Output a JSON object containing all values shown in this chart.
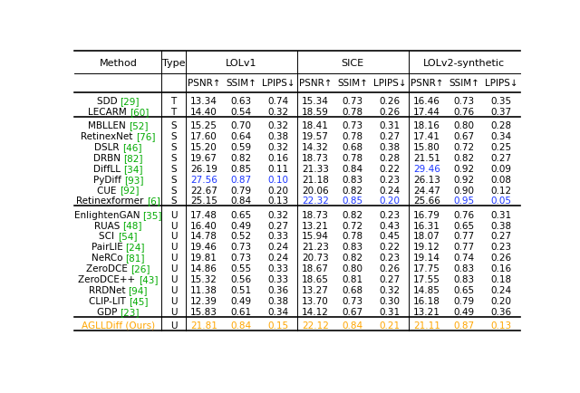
{
  "col_groups": [
    {
      "name": "LOLv1",
      "span": [
        2,
        4
      ]
    },
    {
      "name": "SICE",
      "span": [
        5,
        7
      ]
    },
    {
      "name": "LOLv2-synthetic",
      "span": [
        8,
        10
      ]
    }
  ],
  "metric_labels": [
    "PSNR↑",
    "SSIM↑",
    "LPIPS↓",
    "PSNR↑",
    "SSIM↑",
    "LPIPS↓",
    "PSNR↑",
    "SSIM↑",
    "LPIPS↓"
  ],
  "rows": [
    {
      "method": "SDD",
      "cite": "[29]",
      "type": "T",
      "vals": [
        13.34,
        0.63,
        0.74,
        15.34,
        0.73,
        0.26,
        16.46,
        0.73,
        0.35
      ]
    },
    {
      "method": "LECARM",
      "cite": "[60]",
      "type": "T",
      "vals": [
        14.4,
        0.54,
        0.32,
        18.59,
        0.78,
        0.26,
        17.44,
        0.76,
        0.37
      ]
    },
    {
      "method": "MBLLEN",
      "cite": "[52]",
      "type": "S",
      "vals": [
        15.25,
        0.7,
        0.32,
        18.41,
        0.73,
        0.31,
        18.16,
        0.8,
        0.28
      ]
    },
    {
      "method": "RetinexNet",
      "cite": "[76]",
      "type": "S",
      "vals": [
        17.6,
        0.64,
        0.38,
        19.57,
        0.78,
        0.27,
        17.41,
        0.67,
        0.34
      ]
    },
    {
      "method": "DSLR",
      "cite": "[46]",
      "type": "S",
      "vals": [
        15.2,
        0.59,
        0.32,
        14.32,
        0.68,
        0.38,
        15.8,
        0.72,
        0.25
      ]
    },
    {
      "method": "DRBN",
      "cite": "[82]",
      "type": "S",
      "vals": [
        19.67,
        0.82,
        0.16,
        18.73,
        0.78,
        0.28,
        21.51,
        0.82,
        0.27
      ]
    },
    {
      "method": "DiffLL",
      "cite": "[34]",
      "type": "S",
      "vals": [
        26.19,
        0.85,
        0.11,
        21.33,
        0.84,
        0.22,
        29.46,
        0.92,
        0.09
      ]
    },
    {
      "method": "PyDiff",
      "cite": "[93]",
      "type": "S",
      "vals": [
        27.56,
        0.87,
        0.1,
        21.18,
        0.83,
        0.23,
        26.13,
        0.92,
        0.08
      ]
    },
    {
      "method": "CUE",
      "cite": "[92]",
      "type": "S",
      "vals": [
        22.67,
        0.79,
        0.2,
        20.06,
        0.82,
        0.24,
        24.47,
        0.9,
        0.12
      ]
    },
    {
      "method": "Retinexformer",
      "cite": "[6]",
      "type": "S",
      "vals": [
        25.15,
        0.84,
        0.13,
        22.32,
        0.85,
        0.2,
        25.66,
        0.95,
        0.05
      ]
    },
    {
      "method": "EnlightenGAN",
      "cite": "[35]",
      "type": "U",
      "vals": [
        17.48,
        0.65,
        0.32,
        18.73,
        0.82,
        0.23,
        16.79,
        0.76,
        0.31
      ]
    },
    {
      "method": "RUAS",
      "cite": "[48]",
      "type": "U",
      "vals": [
        16.4,
        0.49,
        0.27,
        13.21,
        0.72,
        0.43,
        16.31,
        0.65,
        0.38
      ]
    },
    {
      "method": "SCI",
      "cite": "[54]",
      "type": "U",
      "vals": [
        14.78,
        0.52,
        0.33,
        15.94,
        0.78,
        0.45,
        18.07,
        0.77,
        0.27
      ]
    },
    {
      "method": "PairLIE",
      "cite": "[24]",
      "type": "U",
      "vals": [
        19.46,
        0.73,
        0.24,
        21.23,
        0.83,
        0.22,
        19.12,
        0.77,
        0.23
      ]
    },
    {
      "method": "NeRCo",
      "cite": "[81]",
      "type": "U",
      "vals": [
        19.81,
        0.73,
        0.24,
        20.73,
        0.82,
        0.23,
        19.14,
        0.74,
        0.26
      ]
    },
    {
      "method": "ZeroDCE",
      "cite": "[26]",
      "type": "U",
      "vals": [
        14.86,
        0.55,
        0.33,
        18.67,
        0.8,
        0.26,
        17.75,
        0.83,
        0.16
      ]
    },
    {
      "method": "ZeroDCE++",
      "cite": "[43]",
      "type": "U",
      "vals": [
        15.32,
        0.56,
        0.33,
        18.65,
        0.81,
        0.27,
        17.55,
        0.83,
        0.18
      ]
    },
    {
      "method": "RRDNet",
      "cite": "[94]",
      "type": "U",
      "vals": [
        11.38,
        0.51,
        0.36,
        13.27,
        0.68,
        0.32,
        14.85,
        0.65,
        0.24
      ]
    },
    {
      "method": "CLIP-LIT",
      "cite": "[45]",
      "type": "U",
      "vals": [
        12.39,
        0.49,
        0.38,
        13.7,
        0.73,
        0.3,
        16.18,
        0.79,
        0.2
      ]
    },
    {
      "method": "GDP",
      "cite": "[23]",
      "type": "U",
      "vals": [
        15.83,
        0.61,
        0.34,
        14.12,
        0.67,
        0.31,
        13.21,
        0.49,
        0.36
      ]
    },
    {
      "method": "AGLLDiff (Ours)",
      "cite": "",
      "type": "U",
      "vals": [
        21.81,
        0.84,
        0.15,
        22.12,
        0.84,
        0.21,
        21.11,
        0.87,
        0.13
      ]
    }
  ],
  "highlight_blue": {
    "PyDiff": [
      0,
      1,
      2
    ],
    "DiffLL": [
      6
    ],
    "Retinexformer": [
      3,
      4,
      5,
      7,
      8
    ]
  },
  "highlight_orange": {
    "AGLLDiff (Ours)": [
      0,
      1,
      2,
      3,
      4,
      5,
      6,
      7,
      8
    ]
  },
  "sep_after_rows": [
    1,
    9,
    19
  ],
  "colors": {
    "black": "#000000",
    "blue": "#1a35ff",
    "orange": "#FFA500",
    "green": "#00aa00",
    "line": "#000000"
  },
  "figsize": [
    6.4,
    4.35
  ],
  "dpi": 100
}
